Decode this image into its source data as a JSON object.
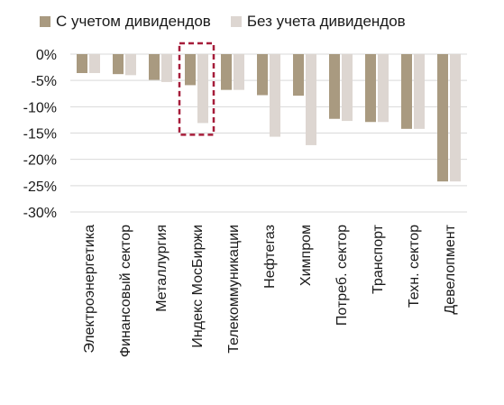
{
  "chart_data": {
    "type": "bar",
    "title": "",
    "xlabel": "",
    "ylabel": "",
    "ylim": [
      -30,
      0
    ],
    "yticks": [
      0,
      -5,
      -10,
      -15,
      -20,
      -25,
      -30
    ],
    "ytick_labels": [
      "0%",
      "-5%",
      "-10%",
      "-15%",
      "-20%",
      "-25%",
      "-30%"
    ],
    "grid": true,
    "legend_position": "top",
    "categories": [
      "Электроэнергетика",
      "Финансовый сектор",
      "Металлургия",
      "Индекс МосБиржи",
      "Телекоммуникации",
      "Нефтегаз",
      "Химпром",
      "Потреб. сектор",
      "Транспорт",
      "Техн. сектор",
      "Девелопмент"
    ],
    "series": [
      {
        "name": "С учетом дивидендов",
        "color": "#a99a80",
        "values": [
          -3.6,
          -3.8,
          -4.9,
          -5.9,
          -6.8,
          -7.8,
          -7.9,
          -12.3,
          -12.9,
          -14.2,
          -24.2
        ]
      },
      {
        "name": "Без учета дивидендов",
        "color": "#ddd6d1",
        "values": [
          -3.6,
          -4.0,
          -5.3,
          -13.1,
          -6.8,
          -15.7,
          -17.3,
          -12.7,
          -12.9,
          -14.2,
          -24.2
        ]
      }
    ],
    "highlight": {
      "category": "Индекс МосБиржи",
      "color": "#a61d3a",
      "style": "dashed-box"
    }
  }
}
